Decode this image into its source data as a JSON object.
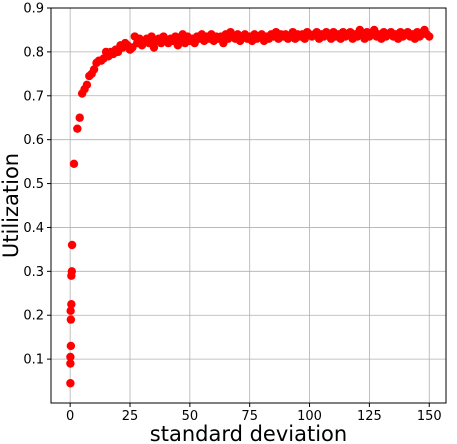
{
  "chart_data": {
    "type": "scatter",
    "title": "",
    "xlabel": "standard deviation",
    "ylabel": "Utilization",
    "xlim": [
      -8,
      157
    ],
    "ylim": [
      0.0,
      0.9
    ],
    "x_ticks": [
      0,
      25,
      50,
      75,
      100,
      125,
      150
    ],
    "y_ticks": [
      0.1,
      0.2,
      0.3,
      0.4,
      0.5,
      0.6,
      0.7,
      0.8,
      0.9
    ],
    "grid": true,
    "marker_color": "#ff0000",
    "series": [
      {
        "points": [
          [
            0.1,
            0.045
          ],
          [
            0.1,
            0.09
          ],
          [
            0.1,
            0.105
          ],
          [
            0.3,
            0.13
          ],
          [
            0.3,
            0.19
          ],
          [
            0.2,
            0.21
          ],
          [
            0.5,
            0.225
          ],
          [
            0.5,
            0.29
          ],
          [
            0.7,
            0.3
          ],
          [
            0.8,
            0.36
          ],
          [
            1.6,
            0.545
          ],
          [
            3.0,
            0.625
          ],
          [
            4.0,
            0.65
          ],
          [
            5.0,
            0.705
          ],
          [
            6.0,
            0.715
          ],
          [
            7.0,
            0.725
          ],
          [
            8.0,
            0.745
          ],
          [
            9.0,
            0.75
          ],
          [
            10.0,
            0.76
          ],
          [
            11.0,
            0.775
          ],
          [
            12.0,
            0.78
          ],
          [
            13.0,
            0.78
          ],
          [
            14.0,
            0.785
          ],
          [
            15.0,
            0.8
          ],
          [
            16.0,
            0.79
          ],
          [
            17.0,
            0.8
          ],
          [
            18.0,
            0.795
          ],
          [
            19.0,
            0.805
          ],
          [
            20.0,
            0.8
          ],
          [
            21.0,
            0.815
          ],
          [
            22.0,
            0.81
          ],
          [
            23.0,
            0.82
          ],
          [
            24.0,
            0.815
          ],
          [
            25.0,
            0.805
          ],
          [
            26.0,
            0.81
          ],
          [
            27.0,
            0.835
          ],
          [
            28.0,
            0.82
          ],
          [
            29.0,
            0.83
          ],
          [
            30.0,
            0.815
          ],
          [
            31.0,
            0.825
          ],
          [
            32.0,
            0.83
          ],
          [
            33.0,
            0.82
          ],
          [
            34.0,
            0.835
          ],
          [
            35.0,
            0.81
          ],
          [
            36.0,
            0.825
          ],
          [
            37.0,
            0.83
          ],
          [
            38.0,
            0.82
          ],
          [
            39.0,
            0.835
          ],
          [
            40.0,
            0.825
          ],
          [
            41.0,
            0.82
          ],
          [
            42.0,
            0.83
          ],
          [
            43.0,
            0.825
          ],
          [
            44.0,
            0.835
          ],
          [
            45.0,
            0.815
          ],
          [
            46.0,
            0.83
          ],
          [
            47.0,
            0.84
          ],
          [
            48.0,
            0.82
          ],
          [
            49.0,
            0.835
          ],
          [
            50.0,
            0.825
          ],
          [
            51.0,
            0.83
          ],
          [
            52.0,
            0.82
          ],
          [
            53.0,
            0.835
          ],
          [
            54.0,
            0.83
          ],
          [
            55.0,
            0.84
          ],
          [
            56.0,
            0.825
          ],
          [
            57.0,
            0.835
          ],
          [
            58.0,
            0.83
          ],
          [
            59.0,
            0.84
          ],
          [
            60.0,
            0.825
          ],
          [
            61.0,
            0.835
          ],
          [
            62.0,
            0.83
          ],
          [
            63.0,
            0.835
          ],
          [
            64.0,
            0.82
          ],
          [
            65.0,
            0.84
          ],
          [
            66.0,
            0.83
          ],
          [
            67.0,
            0.845
          ],
          [
            68.0,
            0.835
          ],
          [
            69.0,
            0.83
          ],
          [
            70.0,
            0.84
          ],
          [
            71.0,
            0.825
          ],
          [
            72.0,
            0.835
          ],
          [
            73.0,
            0.84
          ],
          [
            74.0,
            0.83
          ],
          [
            75.0,
            0.835
          ],
          [
            76.0,
            0.825
          ],
          [
            77.0,
            0.84
          ],
          [
            78.0,
            0.83
          ],
          [
            79.0,
            0.835
          ],
          [
            80.0,
            0.84
          ],
          [
            81.0,
            0.825
          ],
          [
            82.0,
            0.835
          ],
          [
            83.0,
            0.83
          ],
          [
            84.0,
            0.84
          ],
          [
            85.0,
            0.835
          ],
          [
            86.0,
            0.845
          ],
          [
            87.0,
            0.83
          ],
          [
            88.0,
            0.84
          ],
          [
            89.0,
            0.835
          ],
          [
            90.0,
            0.84
          ],
          [
            91.0,
            0.83
          ],
          [
            92.0,
            0.835
          ],
          [
            93.0,
            0.845
          ],
          [
            94.0,
            0.83
          ],
          [
            95.0,
            0.84
          ],
          [
            96.0,
            0.835
          ],
          [
            97.0,
            0.84
          ],
          [
            98.0,
            0.83
          ],
          [
            99.0,
            0.845
          ],
          [
            100.0,
            0.84
          ],
          [
            101.0,
            0.835
          ],
          [
            102.0,
            0.84
          ],
          [
            103.0,
            0.845
          ],
          [
            104.0,
            0.83
          ],
          [
            105.0,
            0.84
          ],
          [
            106.0,
            0.835
          ],
          [
            107.0,
            0.845
          ],
          [
            108.0,
            0.84
          ],
          [
            109.0,
            0.83
          ],
          [
            110.0,
            0.845
          ],
          [
            111.0,
            0.835
          ],
          [
            112.0,
            0.84
          ],
          [
            113.0,
            0.83
          ],
          [
            114.0,
            0.845
          ],
          [
            115.0,
            0.835
          ],
          [
            116.0,
            0.84
          ],
          [
            117.0,
            0.845
          ],
          [
            118.0,
            0.83
          ],
          [
            119.0,
            0.84
          ],
          [
            120.0,
            0.835
          ],
          [
            121.0,
            0.85
          ],
          [
            122.0,
            0.84
          ],
          [
            123.0,
            0.83
          ],
          [
            124.0,
            0.845
          ],
          [
            125.0,
            0.835
          ],
          [
            126.0,
            0.84
          ],
          [
            127.0,
            0.85
          ],
          [
            128.0,
            0.835
          ],
          [
            129.0,
            0.84
          ],
          [
            130.0,
            0.83
          ],
          [
            131.0,
            0.845
          ],
          [
            132.0,
            0.835
          ],
          [
            133.0,
            0.84
          ],
          [
            134.0,
            0.845
          ],
          [
            135.0,
            0.835
          ],
          [
            136.0,
            0.84
          ],
          [
            137.0,
            0.83
          ],
          [
            138.0,
            0.845
          ],
          [
            139.0,
            0.835
          ],
          [
            140.0,
            0.84
          ],
          [
            141.0,
            0.845
          ],
          [
            142.0,
            0.835
          ],
          [
            143.0,
            0.84
          ],
          [
            144.0,
            0.83
          ],
          [
            145.0,
            0.845
          ],
          [
            146.0,
            0.835
          ],
          [
            147.0,
            0.84
          ],
          [
            148.0,
            0.85
          ],
          [
            149.0,
            0.84
          ],
          [
            150.0,
            0.835
          ]
        ]
      }
    ]
  }
}
